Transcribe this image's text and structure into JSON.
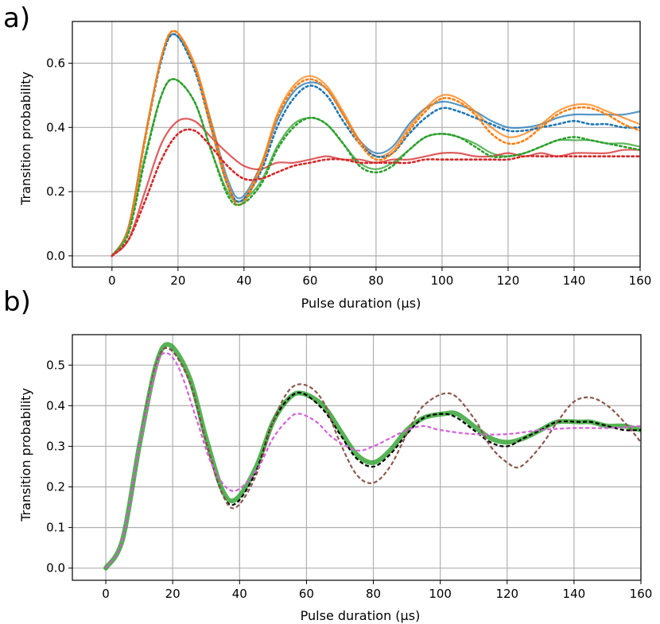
{
  "chart_data": [
    {
      "type": "line",
      "panel_label": "a)",
      "xlabel": "Pulse duration (μs)",
      "ylabel": "Transition probability",
      "xlim": [
        -12,
        160
      ],
      "ylim": [
        -0.035,
        0.73
      ],
      "xticks": [
        0,
        20,
        40,
        60,
        80,
        100,
        120,
        140,
        160
      ],
      "yticks": [
        0.0,
        0.2,
        0.4,
        0.6
      ],
      "ytick_labels": [
        "0.0",
        "0.2",
        "0.4",
        "0.6"
      ],
      "grid": true,
      "legend": "none",
      "series": [
        {
          "color": "#1f77b4",
          "style": "solid",
          "x": [
            0,
            5,
            10,
            15,
            19,
            25,
            30,
            35,
            39,
            45,
            50,
            55,
            60,
            65,
            70,
            75,
            80,
            85,
            90,
            95,
            100,
            105,
            110,
            115,
            120,
            125,
            130,
            135,
            140,
            145,
            150,
            155,
            160
          ],
          "y": [
            0,
            0.09,
            0.37,
            0.62,
            0.69,
            0.59,
            0.42,
            0.24,
            0.18,
            0.28,
            0.42,
            0.51,
            0.54,
            0.52,
            0.44,
            0.36,
            0.32,
            0.34,
            0.41,
            0.46,
            0.48,
            0.47,
            0.45,
            0.42,
            0.4,
            0.4,
            0.41,
            0.43,
            0.44,
            0.44,
            0.44,
            0.44,
            0.45
          ]
        },
        {
          "color": "#1f77b4",
          "style": "dotted",
          "x": [
            0,
            5,
            10,
            15,
            19,
            25,
            30,
            35,
            39,
            45,
            50,
            55,
            60,
            65,
            70,
            75,
            80,
            85,
            90,
            95,
            100,
            105,
            110,
            115,
            120,
            125,
            130,
            135,
            140,
            145,
            150,
            155,
            160
          ],
          "y": [
            0,
            0.08,
            0.36,
            0.61,
            0.69,
            0.58,
            0.4,
            0.22,
            0.17,
            0.26,
            0.4,
            0.49,
            0.53,
            0.5,
            0.42,
            0.35,
            0.31,
            0.32,
            0.38,
            0.43,
            0.46,
            0.45,
            0.43,
            0.41,
            0.39,
            0.39,
            0.4,
            0.41,
            0.42,
            0.41,
            0.41,
            0.4,
            0.4
          ]
        },
        {
          "color": "#ff7f0e",
          "style": "solid",
          "x": [
            0,
            5,
            10,
            15,
            19,
            25,
            30,
            35,
            39,
            45,
            50,
            55,
            60,
            65,
            70,
            75,
            80,
            85,
            90,
            95,
            100,
            105,
            110,
            115,
            120,
            125,
            130,
            135,
            140,
            145,
            150,
            155,
            160
          ],
          "y": [
            0,
            0.09,
            0.37,
            0.62,
            0.7,
            0.6,
            0.42,
            0.23,
            0.17,
            0.28,
            0.44,
            0.53,
            0.56,
            0.53,
            0.45,
            0.36,
            0.31,
            0.33,
            0.4,
            0.46,
            0.5,
            0.49,
            0.45,
            0.4,
            0.37,
            0.38,
            0.41,
            0.45,
            0.47,
            0.47,
            0.45,
            0.43,
            0.41
          ]
        },
        {
          "color": "#ff7f0e",
          "style": "dotted",
          "x": [
            0,
            5,
            10,
            15,
            19,
            25,
            30,
            35,
            39,
            45,
            50,
            55,
            60,
            65,
            70,
            75,
            80,
            85,
            90,
            95,
            100,
            105,
            110,
            115,
            120,
            125,
            130,
            135,
            140,
            145,
            150,
            155,
            160
          ],
          "y": [
            0,
            0.08,
            0.36,
            0.62,
            0.7,
            0.59,
            0.4,
            0.22,
            0.16,
            0.27,
            0.43,
            0.52,
            0.55,
            0.52,
            0.44,
            0.35,
            0.3,
            0.32,
            0.39,
            0.45,
            0.49,
            0.48,
            0.44,
            0.38,
            0.35,
            0.36,
            0.4,
            0.44,
            0.46,
            0.46,
            0.44,
            0.41,
            0.39
          ]
        },
        {
          "color": "#2ca02c",
          "style": "solid",
          "x": [
            0,
            5,
            10,
            15,
            19,
            25,
            30,
            35,
            39,
            45,
            50,
            55,
            60,
            65,
            70,
            75,
            80,
            85,
            90,
            95,
            100,
            105,
            110,
            115,
            120,
            125,
            130,
            135,
            140,
            145,
            150,
            155,
            160
          ],
          "y": [
            0,
            0.08,
            0.31,
            0.5,
            0.55,
            0.48,
            0.33,
            0.2,
            0.17,
            0.23,
            0.34,
            0.41,
            0.43,
            0.41,
            0.35,
            0.29,
            0.27,
            0.29,
            0.33,
            0.37,
            0.38,
            0.37,
            0.35,
            0.32,
            0.31,
            0.32,
            0.34,
            0.36,
            0.36,
            0.36,
            0.35,
            0.35,
            0.34
          ]
        },
        {
          "color": "#2ca02c",
          "style": "dotted",
          "x": [
            0,
            5,
            10,
            15,
            19,
            25,
            30,
            35,
            39,
            45,
            50,
            55,
            60,
            65,
            70,
            75,
            80,
            85,
            90,
            95,
            100,
            105,
            110,
            115,
            120,
            125,
            130,
            135,
            140,
            145,
            150,
            155,
            160
          ],
          "y": [
            0,
            0.07,
            0.3,
            0.5,
            0.55,
            0.48,
            0.33,
            0.19,
            0.16,
            0.22,
            0.33,
            0.4,
            0.43,
            0.41,
            0.35,
            0.28,
            0.26,
            0.28,
            0.33,
            0.37,
            0.38,
            0.37,
            0.34,
            0.31,
            0.31,
            0.32,
            0.34,
            0.36,
            0.37,
            0.36,
            0.35,
            0.34,
            0.33
          ]
        },
        {
          "color": "#d62728",
          "style": "solid",
          "x": [
            0,
            5,
            10,
            15,
            20,
            25,
            30,
            35,
            40,
            45,
            50,
            55,
            60,
            65,
            70,
            75,
            80,
            85,
            90,
            95,
            100,
            105,
            110,
            115,
            120,
            125,
            130,
            135,
            140,
            145,
            150,
            155,
            160
          ],
          "y": [
            0,
            0.05,
            0.2,
            0.35,
            0.42,
            0.42,
            0.37,
            0.32,
            0.28,
            0.27,
            0.29,
            0.29,
            0.3,
            0.31,
            0.3,
            0.3,
            0.29,
            0.3,
            0.3,
            0.31,
            0.32,
            0.32,
            0.31,
            0.31,
            0.32,
            0.31,
            0.32,
            0.31,
            0.32,
            0.32,
            0.32,
            0.33,
            0.33
          ]
        },
        {
          "color": "#d62728",
          "style": "dotted",
          "x": [
            0,
            5,
            10,
            15,
            20,
            25,
            30,
            35,
            40,
            45,
            50,
            55,
            60,
            65,
            70,
            75,
            80,
            85,
            90,
            95,
            100,
            105,
            110,
            115,
            120,
            125,
            130,
            135,
            140,
            145,
            150,
            155,
            160
          ],
          "y": [
            0,
            0.05,
            0.17,
            0.3,
            0.38,
            0.39,
            0.34,
            0.28,
            0.24,
            0.24,
            0.26,
            0.28,
            0.29,
            0.3,
            0.3,
            0.29,
            0.29,
            0.29,
            0.29,
            0.3,
            0.3,
            0.3,
            0.3,
            0.3,
            0.3,
            0.31,
            0.31,
            0.31,
            0.31,
            0.31,
            0.31,
            0.31,
            0.31
          ]
        }
      ]
    },
    {
      "type": "line",
      "panel_label": "b)",
      "xlabel": "Pulse duration (μs)",
      "ylabel": "Transition probability",
      "xlim": [
        -10,
        160
      ],
      "ylim": [
        -0.03,
        0.575
      ],
      "xticks": [
        0,
        20,
        40,
        60,
        80,
        100,
        120,
        140,
        160
      ],
      "yticks": [
        0.0,
        0.1,
        0.2,
        0.3,
        0.4,
        0.5
      ],
      "ytick_labels": [
        "0.0",
        "0.1",
        "0.2",
        "0.3",
        "0.4",
        "0.5"
      ],
      "grid": true,
      "legend": "none",
      "series": [
        {
          "color": "#2ca02c",
          "style": "thick-solid",
          "x": [
            0,
            5,
            10,
            15,
            19,
            25,
            30,
            35,
            39,
            45,
            50,
            55,
            59,
            65,
            70,
            75,
            80,
            85,
            90,
            95,
            101,
            105,
            110,
            115,
            120,
            125,
            130,
            135,
            142,
            145,
            150,
            155,
            160
          ],
          "y": [
            0,
            0.07,
            0.3,
            0.5,
            0.55,
            0.47,
            0.32,
            0.19,
            0.17,
            0.25,
            0.36,
            0.42,
            0.43,
            0.4,
            0.34,
            0.28,
            0.26,
            0.29,
            0.34,
            0.37,
            0.38,
            0.38,
            0.35,
            0.32,
            0.31,
            0.32,
            0.34,
            0.36,
            0.36,
            0.36,
            0.35,
            0.35,
            0.34
          ]
        },
        {
          "color": "#000000",
          "style": "dashed",
          "x": [
            0,
            5,
            10,
            15,
            19,
            25,
            30,
            35,
            39,
            45,
            50,
            55,
            59,
            65,
            70,
            75,
            80,
            85,
            90,
            95,
            101,
            105,
            110,
            115,
            120,
            125,
            130,
            135,
            142,
            145,
            150,
            155,
            160
          ],
          "y": [
            0,
            0.07,
            0.3,
            0.5,
            0.54,
            0.46,
            0.31,
            0.18,
            0.16,
            0.24,
            0.36,
            0.42,
            0.43,
            0.39,
            0.33,
            0.27,
            0.25,
            0.28,
            0.33,
            0.37,
            0.38,
            0.37,
            0.34,
            0.31,
            0.3,
            0.32,
            0.34,
            0.36,
            0.36,
            0.36,
            0.35,
            0.34,
            0.34
          ]
        },
        {
          "color": "#8c564b",
          "style": "dashed",
          "x": [
            0,
            5,
            10,
            15,
            19,
            25,
            30,
            35,
            39,
            45,
            50,
            55,
            60,
            65,
            70,
            75,
            80,
            85,
            90,
            95,
            103,
            110,
            115,
            120,
            124,
            130,
            135,
            140,
            145,
            150,
            155,
            160
          ],
          "y": [
            0,
            0.07,
            0.3,
            0.5,
            0.54,
            0.46,
            0.31,
            0.18,
            0.15,
            0.23,
            0.36,
            0.44,
            0.45,
            0.41,
            0.31,
            0.23,
            0.21,
            0.25,
            0.33,
            0.4,
            0.43,
            0.37,
            0.3,
            0.26,
            0.25,
            0.3,
            0.36,
            0.41,
            0.42,
            0.4,
            0.36,
            0.31
          ]
        },
        {
          "color": "#e377c2",
          "style": "dashed-violet",
          "x": [
            0,
            5,
            10,
            15,
            18,
            22,
            27,
            32,
            38,
            45,
            50,
            55,
            58,
            63,
            68,
            75,
            80,
            85,
            90,
            95,
            100,
            110,
            120,
            130,
            140,
            150,
            160
          ],
          "y": [
            0,
            0.07,
            0.3,
            0.49,
            0.53,
            0.49,
            0.37,
            0.25,
            0.19,
            0.24,
            0.32,
            0.37,
            0.38,
            0.36,
            0.32,
            0.29,
            0.3,
            0.32,
            0.34,
            0.35,
            0.34,
            0.33,
            0.33,
            0.34,
            0.345,
            0.345,
            0.35
          ]
        }
      ]
    }
  ]
}
